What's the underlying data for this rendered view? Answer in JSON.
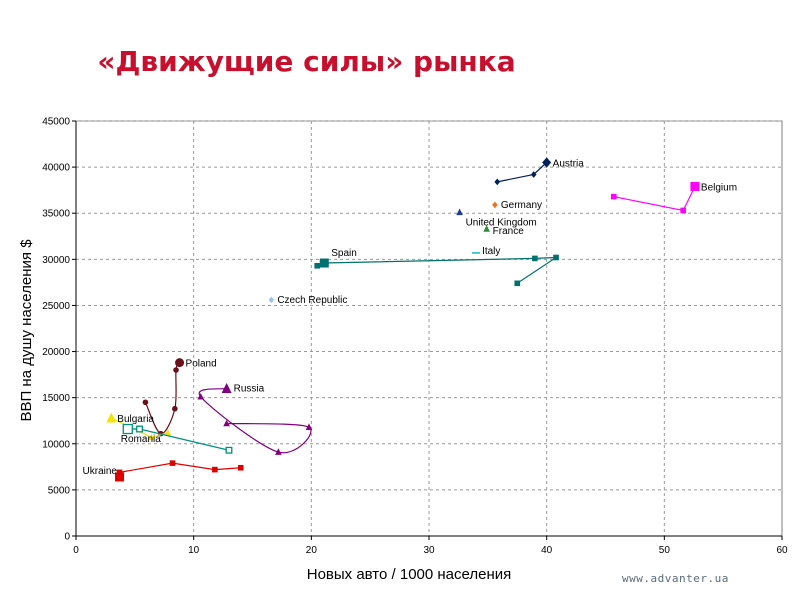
{
  "slide": {
    "title": "«Движущие силы» рынка",
    "watermark": "www.advanter.ua"
  },
  "chart_data": {
    "type": "scatter",
    "title": "",
    "xlabel": "Новых авто / 1000 населения",
    "ylabel": "ВВП на душу населения   $",
    "xlim": [
      0,
      60
    ],
    "ylim": [
      0,
      45000
    ],
    "xticks": [
      0,
      10,
      20,
      30,
      40,
      50,
      60
    ],
    "yticks": [
      0,
      5000,
      10000,
      15000,
      20000,
      25000,
      30000,
      35000,
      40000,
      45000
    ],
    "grid": true,
    "series": [
      {
        "name": "Austria",
        "color": "#00205b",
        "marker": "diamond",
        "smooth": false,
        "points": [
          [
            35.8,
            38400
          ],
          [
            38.9,
            39200
          ],
          [
            40.0,
            40500
          ]
        ],
        "label_at": 2
      },
      {
        "name": "Belgium",
        "color": "#ff00ff",
        "marker": "square",
        "smooth": false,
        "points": [
          [
            45.7,
            36800
          ],
          [
            51.6,
            35300
          ],
          [
            52.6,
            37900
          ]
        ],
        "label_at": 2
      },
      {
        "name": "Germany",
        "color": "#e87722",
        "marker": "diamond",
        "smooth": false,
        "points": [
          [
            35.6,
            35900
          ]
        ],
        "label_at": 0
      },
      {
        "name": "United Kingdom",
        "color": "#1f3a93",
        "marker": "triangle",
        "smooth": false,
        "points": [
          [
            32.6,
            35100
          ]
        ],
        "label_at": 0
      },
      {
        "name": "France",
        "color": "#2e8b3a",
        "marker": "triangle",
        "smooth": false,
        "points": [
          [
            34.9,
            33300
          ]
        ],
        "label_at": 0
      },
      {
        "name": "Spain",
        "color": "#007070",
        "marker": "square",
        "smooth": false,
        "points": [
          [
            37.5,
            27400
          ],
          [
            40.8,
            30200
          ],
          [
            39.0,
            30100
          ],
          [
            21.1,
            29600
          ],
          [
            20.5,
            29300
          ]
        ],
        "label_at": 3
      },
      {
        "name": "Italy",
        "color": "#40c8d8",
        "marker": "dash",
        "smooth": false,
        "points": [
          [
            34.0,
            30700
          ]
        ],
        "label_at": 0
      },
      {
        "name": "Czech Republic",
        "color": "#9ec5e8",
        "marker": "diamond",
        "smooth": false,
        "points": [
          [
            16.6,
            25600
          ]
        ],
        "label_at": 0
      },
      {
        "name": "Poland",
        "color": "#6b0f1a",
        "marker": "circle",
        "smooth": true,
        "points": [
          [
            5.9,
            14500
          ],
          [
            7.2,
            11100
          ],
          [
            8.4,
            13800
          ],
          [
            8.5,
            18000
          ],
          [
            8.8,
            18800
          ]
        ],
        "label_at": 4
      },
      {
        "name": "Russia",
        "color": "#800080",
        "marker": "triangle",
        "smooth": true,
        "points": [
          [
            12.8,
            12200
          ],
          [
            19.8,
            11800
          ],
          [
            17.2,
            9100
          ],
          [
            10.6,
            15100
          ],
          [
            12.8,
            16000
          ]
        ],
        "label_at": 4
      },
      {
        "name": "Bulgaria",
        "color": "#f5e400",
        "marker": "triangle",
        "smooth": false,
        "points": [
          [
            7.8,
            11200
          ],
          [
            6.4,
            10700
          ],
          [
            3.0,
            12800
          ]
        ],
        "label_at": 2
      },
      {
        "name": "Romania",
        "color": "#009080",
        "marker": "hollow-square",
        "smooth": false,
        "points": [
          [
            13.0,
            9300
          ],
          [
            5.4,
            11600
          ],
          [
            4.4,
            11600
          ]
        ],
        "label_at": 2
      },
      {
        "name": "Ukraine",
        "color": "#e00000",
        "marker": "square",
        "smooth": false,
        "points": [
          [
            14.0,
            7400
          ],
          [
            11.8,
            7200
          ],
          [
            8.2,
            7900
          ],
          [
            3.7,
            6900
          ],
          [
            3.7,
            6400
          ]
        ],
        "label_at": 4
      }
    ]
  }
}
